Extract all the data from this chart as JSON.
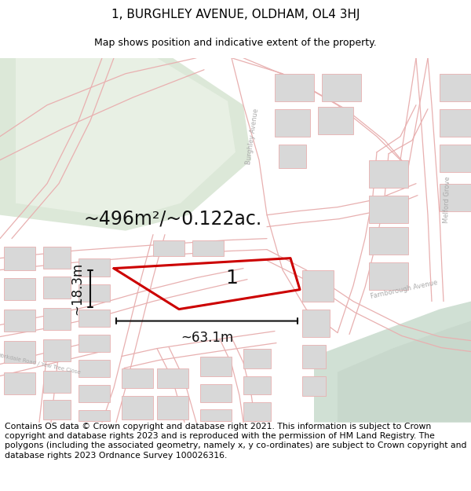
{
  "title_line1": "1, BURGHLEY AVENUE, OLDHAM, OL4 3HJ",
  "title_line2": "Map shows position and indicative extent of the property.",
  "footer_text": "Contains OS data © Crown copyright and database right 2021. This information is subject to Crown copyright and database rights 2023 and is reproduced with the permission of HM Land Registry. The polygons (including the associated geometry, namely x, y co-ordinates) are subject to Crown copyright and database rights 2023 Ordnance Survey 100026316.",
  "area_label": "~496m²/~0.122ac.",
  "width_label": "~63.1m",
  "height_label": "~18.3m",
  "plot_number": "1",
  "map_bg": "#ffffff",
  "road_line_color": "#e8b0b0",
  "building_fill": "#d8d8d8",
  "building_edge": "#e8b0b0",
  "green_color": "#dce8d8",
  "green2_color": "#d0e0cc",
  "water_color": "#d0e0d4",
  "plot_color": "#cc0000",
  "dim_color": "#111111",
  "text_color": "#111111",
  "title_fontsize": 11,
  "subtitle_fontsize": 9,
  "footer_fontsize": 7.8,
  "area_fontsize": 17,
  "dim_fontsize": 12,
  "plot_num_fontsize": 18,
  "road_label_color": "#aaaaaa",
  "road_label_size": 6
}
